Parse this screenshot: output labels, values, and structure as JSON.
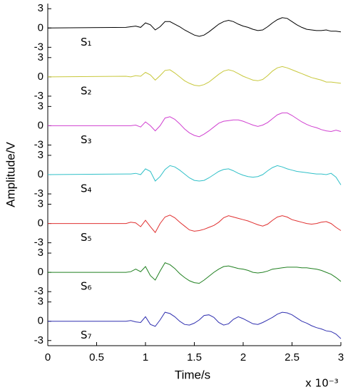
{
  "chart_data": {
    "type": "line",
    "xlabel": "Time/s",
    "ylabel": "Amplitude/V",
    "x_multiplier": "x 10⁻³",
    "xlim": [
      0,
      3
    ],
    "xticks": [
      0,
      0.5,
      1,
      1.5,
      2,
      2.5,
      3
    ],
    "ylim": [
      -3.8,
      3.8
    ],
    "yticks": [
      -3,
      0,
      3
    ],
    "x": [
      0,
      0.8,
      0.85,
      0.9,
      0.95,
      1.0,
      1.05,
      1.1,
      1.15,
      1.2,
      1.25,
      1.3,
      1.35,
      1.4,
      1.45,
      1.5,
      1.55,
      1.6,
      1.65,
      1.7,
      1.75,
      1.8,
      1.85,
      1.9,
      1.95,
      2.0,
      2.05,
      2.1,
      2.15,
      2.2,
      2.25,
      2.3,
      2.35,
      2.4,
      2.45,
      2.5,
      2.55,
      2.6,
      2.65,
      2.7,
      2.75,
      2.8,
      2.85,
      2.9,
      2.95,
      3.0
    ],
    "series": [
      {
        "name": "S₁",
        "color": "#000000",
        "values": [
          0,
          0.1,
          0.2,
          0.3,
          0.1,
          0.8,
          0.5,
          -0.3,
          0.2,
          1.0,
          1.0,
          0.6,
          0.2,
          -0.3,
          -0.7,
          -1.1,
          -1.3,
          -1.1,
          -0.6,
          0,
          0.6,
          1.0,
          1.2,
          1.0,
          0.6,
          0.3,
          0.1,
          -0.2,
          -0.4,
          -0.3,
          0.2,
          0.8,
          1.3,
          1.6,
          1.5,
          1.0,
          0.5,
          0.1,
          -0.2,
          -0.3,
          -0.4,
          -0.4,
          -0.3,
          -0.5,
          -0.5,
          -0.6
        ]
      },
      {
        "name": "S₂",
        "color": "#c8c83c",
        "values": [
          0,
          0.1,
          0,
          0.2,
          0.1,
          0.7,
          0.3,
          -0.5,
          0.2,
          1.0,
          1.1,
          0.6,
          0,
          -0.6,
          -1.0,
          -1.3,
          -1.4,
          -1.2,
          -0.8,
          -0.2,
          0.4,
          0.9,
          1.1,
          0.9,
          0.5,
          0.1,
          -0.2,
          -0.5,
          -0.6,
          -0.4,
          0.2,
          0.9,
          1.4,
          1.6,
          1.4,
          1.1,
          0.8,
          0.5,
          0.2,
          -0.1,
          -0.3,
          -0.5,
          -0.8,
          -0.8,
          -0.9,
          -1.0
        ]
      },
      {
        "name": "S₃",
        "color": "#d040d0",
        "values": [
          0,
          0,
          0,
          0.1,
          -0.2,
          0.6,
          0,
          -0.8,
          0,
          1.2,
          1.4,
          1.0,
          0.3,
          -0.5,
          -1.1,
          -1.5,
          -1.7,
          -1.3,
          -0.8,
          -0.2,
          0.4,
          0.7,
          0.8,
          0.9,
          0.9,
          0.7,
          0.4,
          0.1,
          -0.1,
          0.1,
          0.5,
          1.1,
          1.7,
          2.0,
          2.0,
          1.6,
          1.1,
          0.6,
          0.2,
          -0.1,
          -0.3,
          -0.6,
          -0.8,
          -0.9,
          -0.7,
          -0.9
        ]
      },
      {
        "name": "S₄",
        "color": "#30c0c8",
        "values": [
          0,
          0.1,
          0.1,
          0.2,
          0,
          0.9,
          0.5,
          -1.0,
          -0.3,
          0.8,
          1.4,
          1.2,
          0.7,
          0.1,
          -0.5,
          -0.9,
          -1.0,
          -0.9,
          -0.5,
          0,
          0.5,
          0.8,
          0.9,
          0.6,
          0.2,
          -0.1,
          -0.3,
          -0.4,
          -0.3,
          0,
          0.6,
          1.1,
          1.4,
          1.2,
          0.9,
          0.7,
          0.5,
          0.4,
          0.3,
          0.2,
          0.1,
          0.1,
          0,
          0.2,
          -0.4,
          -1.6
        ]
      },
      {
        "name": "S₅",
        "color": "#e03030",
        "values": [
          0,
          0,
          0.2,
          0.1,
          -0.5,
          0.5,
          -0.5,
          -1.4,
          0,
          1.0,
          1.3,
          0.9,
          0.2,
          -0.4,
          -1.0,
          -1.2,
          -1.1,
          -0.9,
          -0.6,
          -0.3,
          0.2,
          0.9,
          1.2,
          1.0,
          0.8,
          0.6,
          0.4,
          0.1,
          -0.2,
          -0.4,
          -0.1,
          0.5,
          1.0,
          1.2,
          1.0,
          0.6,
          0.4,
          0.2,
          0,
          -0.1,
          0,
          0.2,
          0.3,
          0,
          -0.6,
          -1.1
        ]
      },
      {
        "name": "S₆",
        "color": "#208020",
        "values": [
          0,
          0,
          0.1,
          0.5,
          0.1,
          0.9,
          -0.5,
          -1.2,
          0.2,
          1.5,
          1.2,
          0.6,
          -0.2,
          -0.8,
          -1.3,
          -1.6,
          -1.7,
          -1.2,
          -0.6,
          0,
          0.5,
          0.9,
          1.0,
          0.8,
          0.6,
          0.5,
          0.3,
          0,
          -0.1,
          0,
          0.2,
          0.5,
          0.6,
          0.7,
          0.8,
          0.8,
          0.8,
          0.7,
          0.7,
          0.6,
          0.5,
          0.3,
          0,
          -0.3,
          -0.8,
          -1.4
        ]
      },
      {
        "name": "S₇",
        "color": "#3030b0",
        "values": [
          0,
          0,
          0.1,
          -0.1,
          -0.2,
          0.7,
          -0.5,
          -0.8,
          0.2,
          1.4,
          1.2,
          0.7,
          0,
          -0.5,
          -0.6,
          -0.3,
          0.2,
          0.9,
          1.0,
          0.6,
          -0.2,
          -0.6,
          -0.4,
          0.3,
          0.7,
          0.4,
          0,
          -0.4,
          -0.5,
          -0.2,
          0.2,
          0.6,
          1.1,
          1.4,
          1.3,
          1.0,
          0.5,
          0,
          -0.3,
          -0.7,
          -1.0,
          -1.2,
          -1.5,
          -1.6,
          -2.0,
          -2.7
        ]
      }
    ]
  }
}
